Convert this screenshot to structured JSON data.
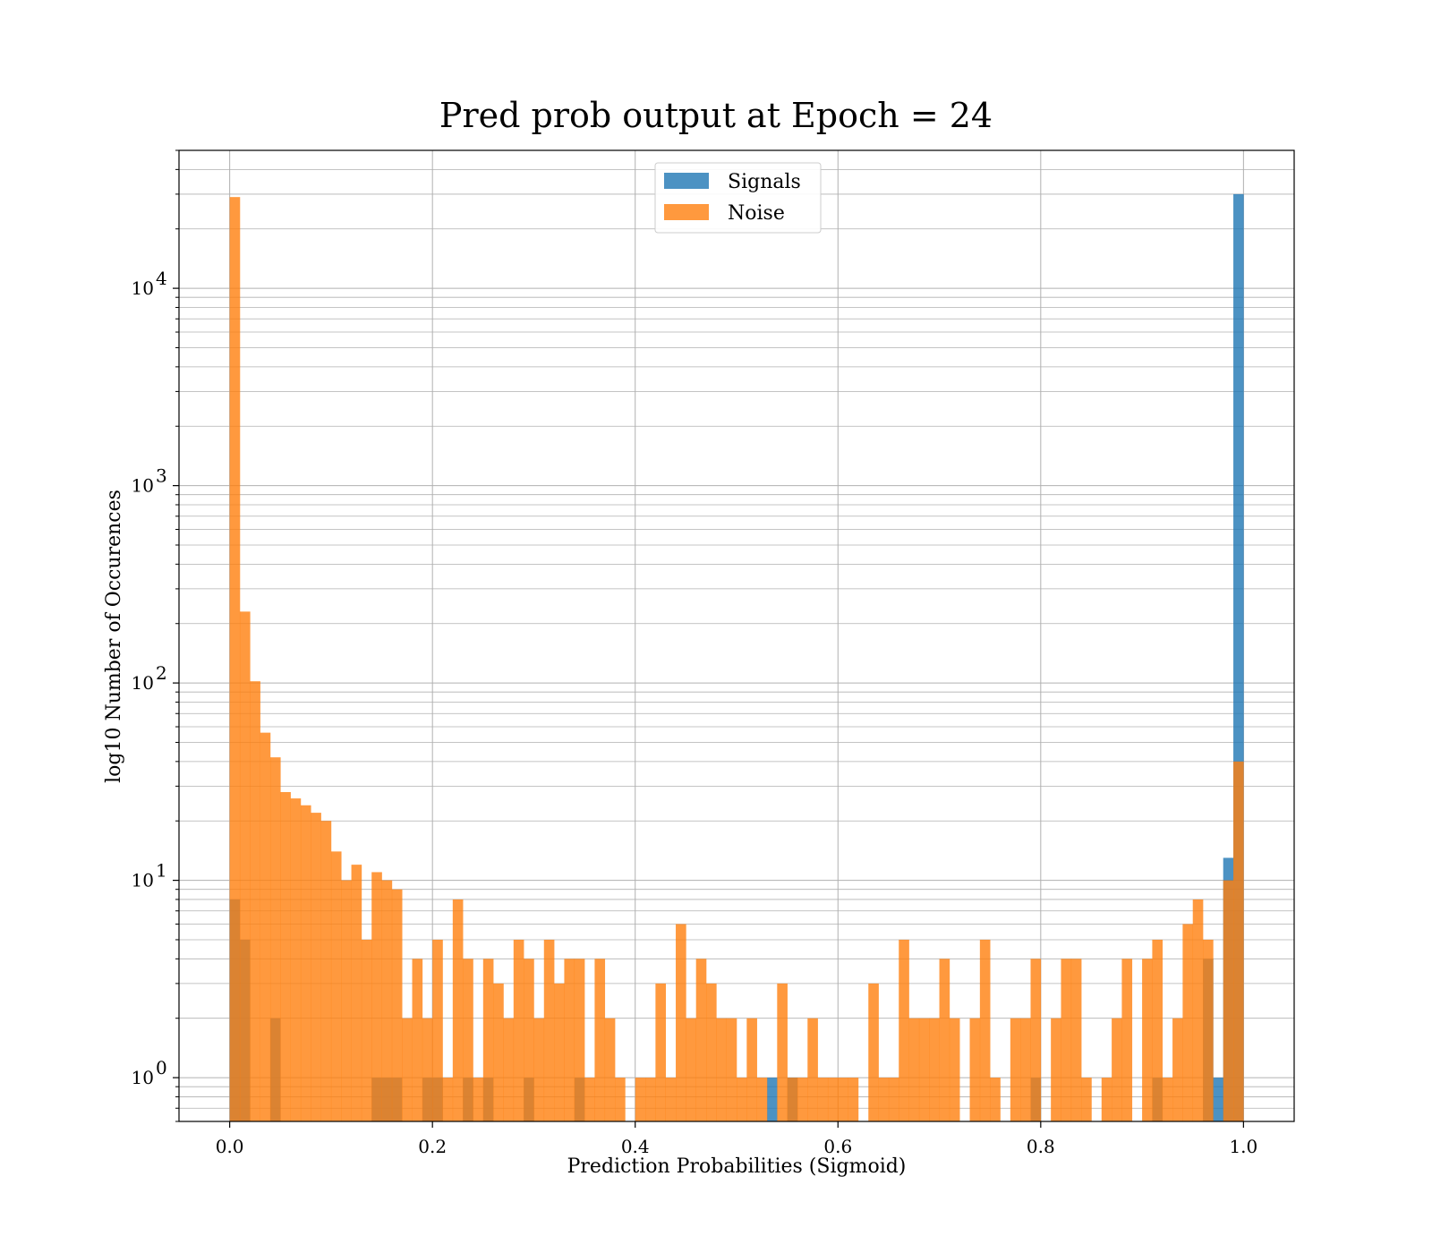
{
  "chart_data": {
    "type": "bar",
    "title": "Pred prob output at Epoch = 24",
    "xlabel": "Prediction Probabilities (Sigmoid)",
    "ylabel": "log10 Number of Occurences",
    "x_scale": "linear",
    "y_scale": "log",
    "xlim": [
      -0.05,
      1.05
    ],
    "ylim": [
      0.6,
      50000
    ],
    "x_ticks": [
      0.0,
      0.2,
      0.4,
      0.6,
      0.8,
      1.0
    ],
    "x_tick_labels": [
      "0.0",
      "0.2",
      "0.4",
      "0.6",
      "0.8",
      "1.0"
    ],
    "y_ticks": [
      1,
      10,
      100,
      1000,
      10000
    ],
    "y_tick_labels": [
      {
        "base": "10",
        "exp": "0"
      },
      {
        "base": "10",
        "exp": "1"
      },
      {
        "base": "10",
        "exp": "2"
      },
      {
        "base": "10",
        "exp": "3"
      },
      {
        "base": "10",
        "exp": "4"
      }
    ],
    "grid": true,
    "grid_minor_y": true,
    "legend_position": "top-center",
    "bin_range": [
      0.0,
      1.0
    ],
    "bin_count": 100,
    "series": [
      {
        "name": "Signals",
        "color": "#1f77b4",
        "values": [
          8,
          5,
          0,
          0,
          2,
          0,
          0,
          0,
          0,
          0,
          0,
          0,
          0,
          0,
          1,
          1,
          1,
          0,
          0,
          1,
          1,
          0,
          0,
          1,
          0,
          1,
          0,
          0,
          0,
          1,
          0,
          0,
          0,
          0,
          1,
          0,
          0,
          0,
          0,
          0,
          0,
          0,
          0,
          0,
          0,
          0,
          0,
          0,
          0,
          0,
          0,
          0,
          0,
          1,
          0,
          1,
          0,
          0,
          0,
          0,
          0,
          0,
          0,
          0,
          0,
          0,
          0,
          0,
          0,
          0,
          0,
          0,
          0,
          0,
          0,
          0,
          0,
          0,
          0,
          1,
          0,
          0,
          0,
          0,
          0,
          0,
          0,
          0,
          0,
          0,
          0,
          1,
          0,
          0,
          0,
          0,
          4,
          1,
          13,
          30000
        ]
      },
      {
        "name": "Noise",
        "color": "#ff7f0e",
        "values": [
          29000,
          230,
          102,
          56,
          42,
          28,
          26,
          24,
          22,
          20,
          14,
          10,
          12,
          5,
          11,
          10,
          9,
          2,
          4,
          2,
          5,
          1,
          8,
          4,
          1,
          4,
          3,
          2,
          5,
          4,
          2,
          5,
          3,
          4,
          4,
          1,
          4,
          2,
          1,
          0,
          1,
          1,
          3,
          1,
          6,
          2,
          4,
          3,
          2,
          2,
          1,
          2,
          1,
          0,
          3,
          1,
          1,
          2,
          1,
          1,
          1,
          1,
          0,
          3,
          1,
          1,
          5,
          2,
          2,
          2,
          4,
          2,
          0,
          2,
          5,
          1,
          0,
          2,
          2,
          4,
          0,
          2,
          4,
          4,
          1,
          0,
          1,
          2,
          4,
          0,
          4,
          5,
          1,
          2,
          6,
          8,
          5,
          0,
          10,
          40
        ]
      }
    ]
  }
}
